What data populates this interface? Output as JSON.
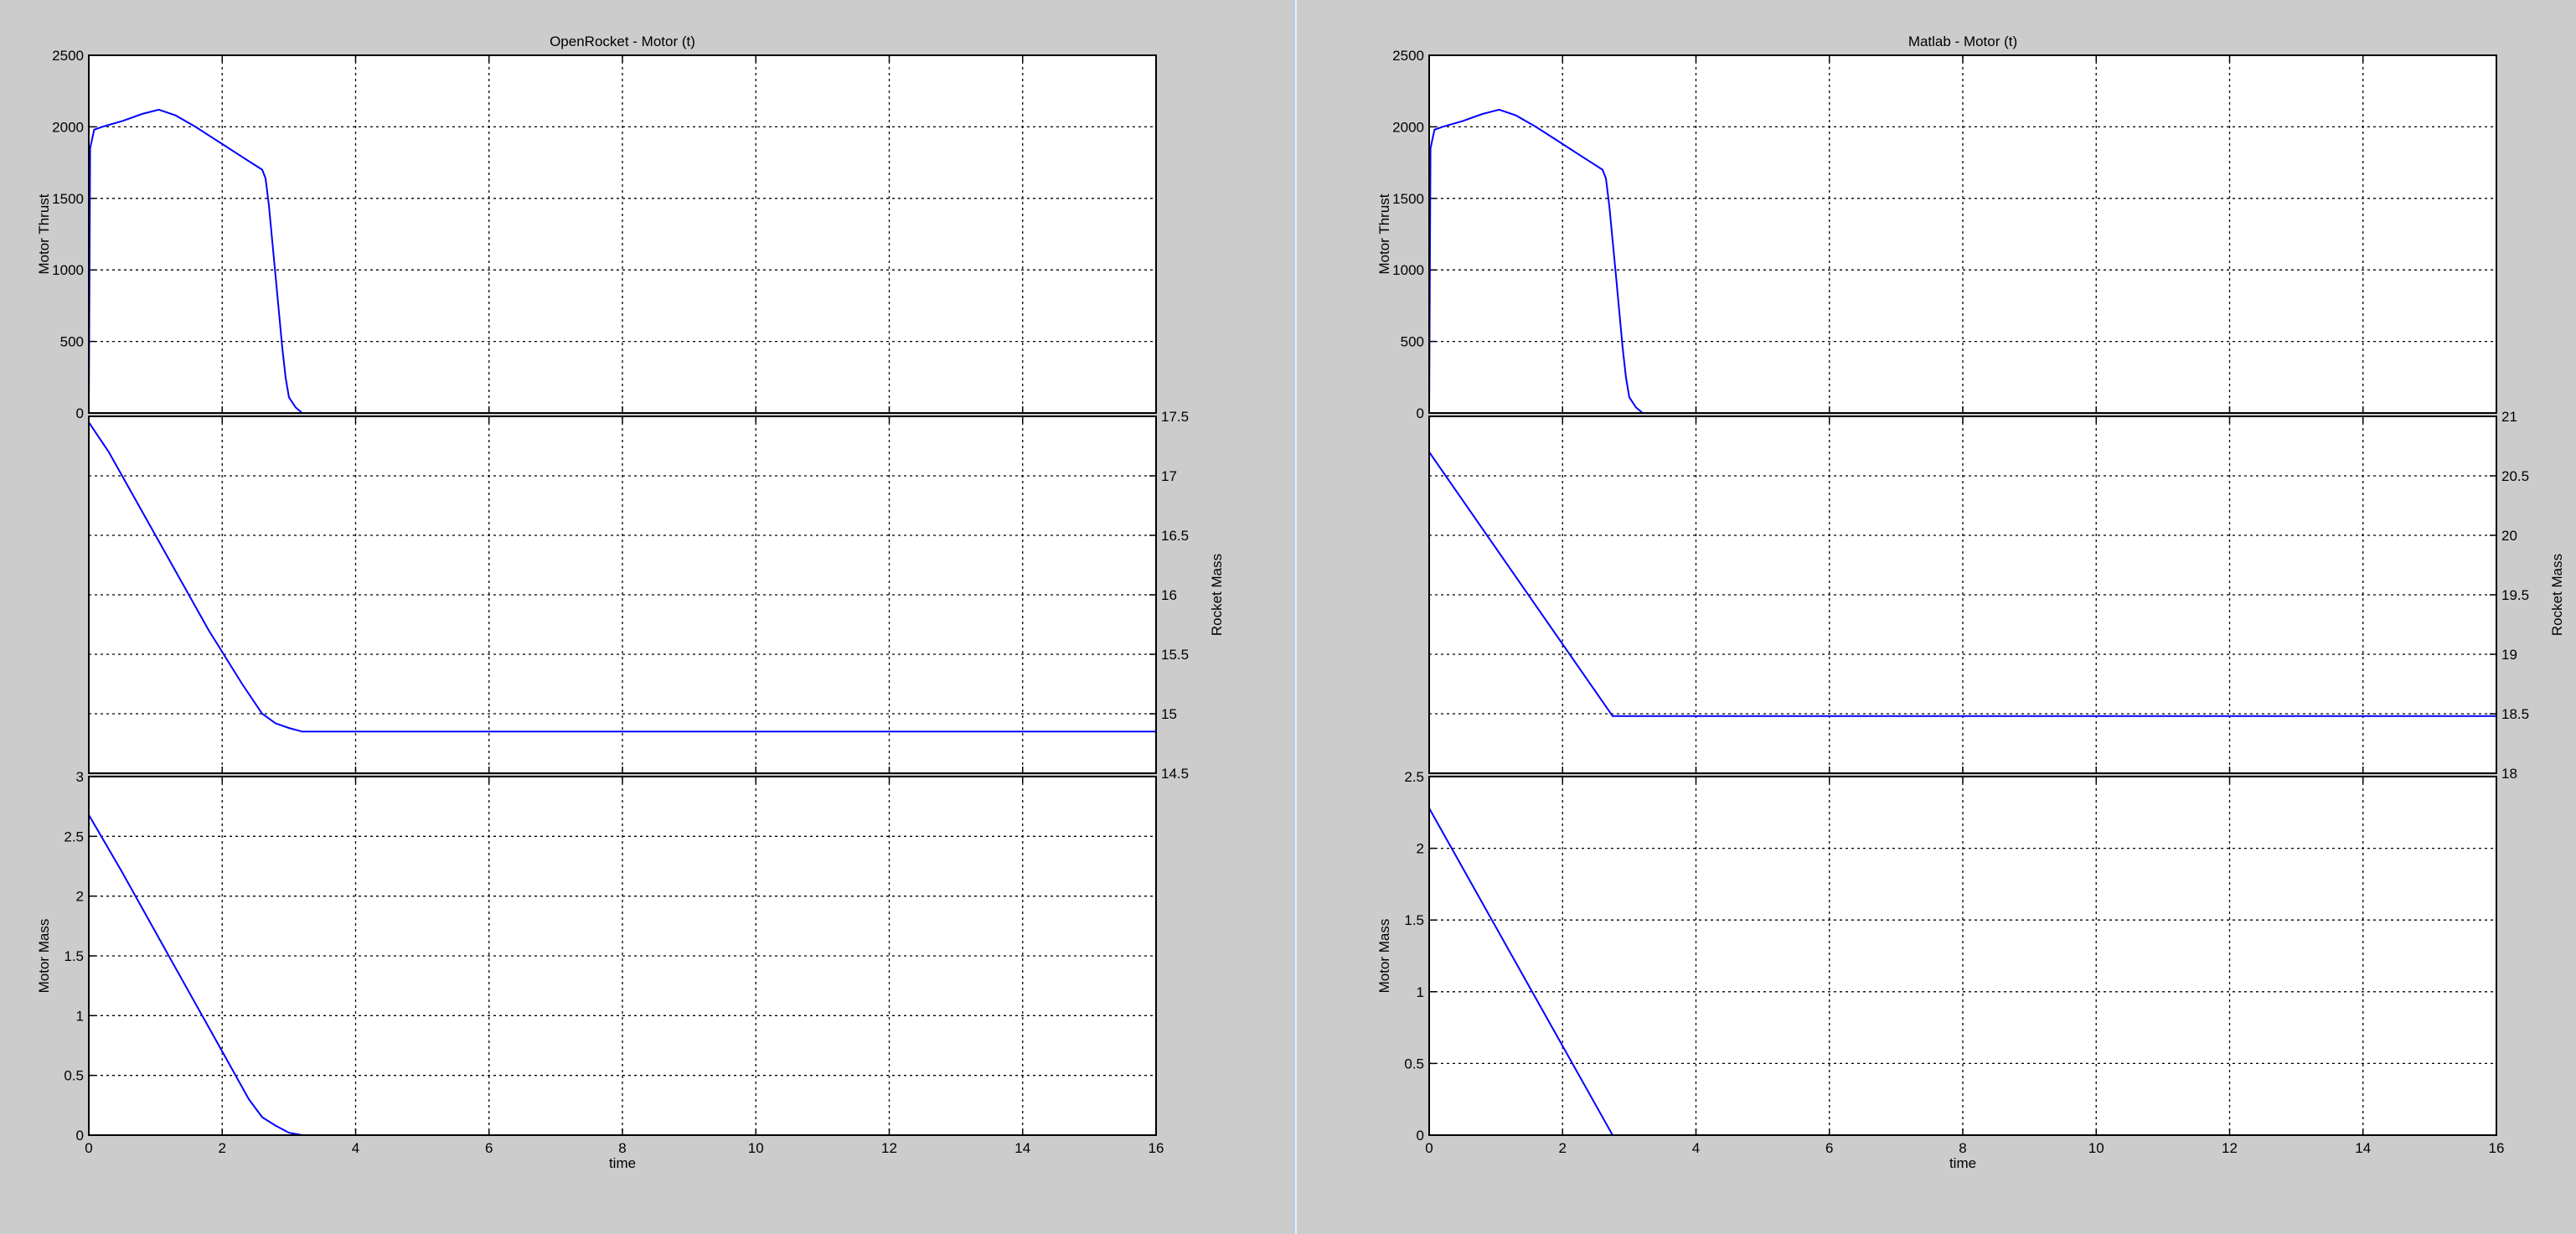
{
  "chart_data": [
    {
      "type": "line",
      "title": "OpenRocket - Motor (t)",
      "xlabel": "time",
      "xlim": [
        0,
        16
      ],
      "xticks": [
        0,
        2,
        4,
        6,
        8,
        10,
        12,
        14,
        16
      ],
      "grid": true,
      "panels": [
        {
          "ylabel": "Motor Thrust",
          "y_side": "left",
          "ylim": [
            0,
            2500
          ],
          "yticks": [
            0,
            500,
            1000,
            1500,
            2000,
            2500
          ],
          "series": [
            {
              "x": [
                0,
                0.02,
                0.08,
                0.2,
                0.5,
                0.8,
                1.05,
                1.3,
                1.6,
                2.0,
                2.3,
                2.6,
                2.65,
                2.7,
                2.8,
                2.9,
                2.95,
                3.0,
                3.1,
                3.2,
                16
              ],
              "y": [
                0,
                1850,
                1980,
                2000,
                2040,
                2090,
                2120,
                2080,
                2000,
                1880,
                1790,
                1700,
                1640,
                1450,
                960,
                460,
                250,
                110,
                40,
                0,
                0
              ]
            }
          ]
        },
        {
          "ylabel": "Rocket Mass",
          "y_side": "right",
          "ylim": [
            14.5,
            17.5
          ],
          "yticks": [
            14.5,
            15,
            15.5,
            16,
            16.5,
            17,
            17.5
          ],
          "series": [
            {
              "x": [
                0,
                0.3,
                0.8,
                1.3,
                1.8,
                2.3,
                2.6,
                2.7,
                2.8,
                3.0,
                3.2,
                16
              ],
              "y": [
                17.45,
                17.2,
                16.7,
                16.2,
                15.7,
                15.25,
                15.0,
                14.96,
                14.92,
                14.88,
                14.85,
                14.85
              ]
            }
          ]
        },
        {
          "ylabel": "Motor Mass",
          "y_side": "left",
          "ylim": [
            0,
            3
          ],
          "yticks": [
            0,
            0.5,
            1,
            1.5,
            2,
            2.5,
            3
          ],
          "series": [
            {
              "x": [
                0,
                0.5,
                1.0,
                1.5,
                2.0,
                2.4,
                2.6,
                2.8,
                3.0,
                3.2,
                16
              ],
              "y": [
                2.68,
                2.2,
                1.7,
                1.2,
                0.7,
                0.3,
                0.15,
                0.08,
                0.02,
                0,
                0
              ]
            }
          ]
        }
      ]
    },
    {
      "type": "line",
      "title": "Matlab - Motor (t)",
      "xlabel": "time",
      "xlim": [
        0,
        16
      ],
      "xticks": [
        0,
        2,
        4,
        6,
        8,
        10,
        12,
        14,
        16
      ],
      "grid": true,
      "panels": [
        {
          "ylabel": "Motor Thrust",
          "y_side": "left",
          "ylim": [
            0,
            2500
          ],
          "yticks": [
            0,
            500,
            1000,
            1500,
            2000,
            2500
          ],
          "series": [
            {
              "x": [
                0,
                0.02,
                0.08,
                0.2,
                0.5,
                0.8,
                1.05,
                1.3,
                1.6,
                2.0,
                2.3,
                2.6,
                2.65,
                2.7,
                2.8,
                2.9,
                2.95,
                3.0,
                3.1,
                3.2,
                16
              ],
              "y": [
                0,
                1850,
                1980,
                2000,
                2040,
                2090,
                2120,
                2080,
                2000,
                1880,
                1790,
                1700,
                1640,
                1450,
                960,
                460,
                250,
                110,
                40,
                0,
                0
              ]
            }
          ]
        },
        {
          "ylabel": "Rocket Mass",
          "y_side": "right",
          "ylim": [
            18,
            21
          ],
          "yticks": [
            18,
            18.5,
            19,
            19.5,
            20,
            20.5,
            21
          ],
          "series": [
            {
              "x": [
                0,
                2.75,
                16
              ],
              "y": [
                20.7,
                18.48,
                18.48
              ]
            }
          ]
        },
        {
          "ylabel": "Motor Mass",
          "y_side": "left",
          "ylim": [
            0,
            2.5
          ],
          "yticks": [
            0,
            0.5,
            1,
            1.5,
            2,
            2.5
          ],
          "series": [
            {
              "x": [
                0,
                2.75,
                16
              ],
              "y": [
                2.28,
                0,
                0
              ]
            }
          ]
        }
      ]
    }
  ]
}
